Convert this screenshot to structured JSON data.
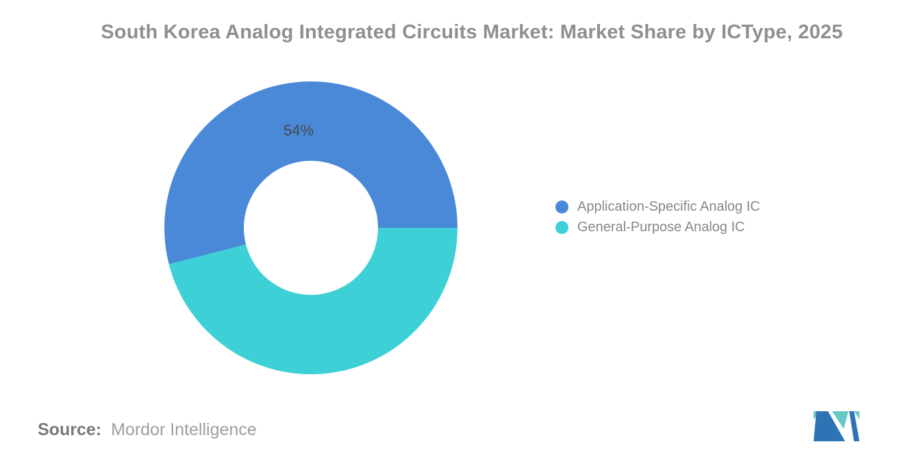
{
  "title": "South Korea Analog Integrated Circuits Market: Market Share by ICType, 2025",
  "chart_data": {
    "type": "pie",
    "subtype": "donut",
    "title": "South Korea Analog Integrated Circuits Market: Market Share by ICType, 2025",
    "series": [
      {
        "name": "Application-Specific Analog IC",
        "value": 54,
        "unit": "%",
        "color": "#4989d7",
        "data_label": "54%"
      },
      {
        "name": "General-Purpose Analog IC",
        "value": 46,
        "unit": "%",
        "color": "#3dd0d6",
        "data_label": ""
      }
    ],
    "total": 100,
    "start_angle_deg": 0,
    "direction": "counterclockwise",
    "inner_radius_ratio": 0.46,
    "grid": false,
    "legend_position": "right",
    "data_label_color": "#46484d",
    "background": "#ffffff"
  },
  "legend": {
    "items": [
      {
        "label": "Application-Specific Analog IC",
        "color": "#4989d7"
      },
      {
        "label": "General-Purpose Analog IC",
        "color": "#3dd0d6"
      }
    ]
  },
  "source": {
    "label": "Source:",
    "value": "Mordor Intelligence"
  },
  "logo": {
    "name": "mordor-intelligence-logo",
    "colors": {
      "blue": "#2e74b5",
      "teal": "#67c9c5"
    }
  }
}
